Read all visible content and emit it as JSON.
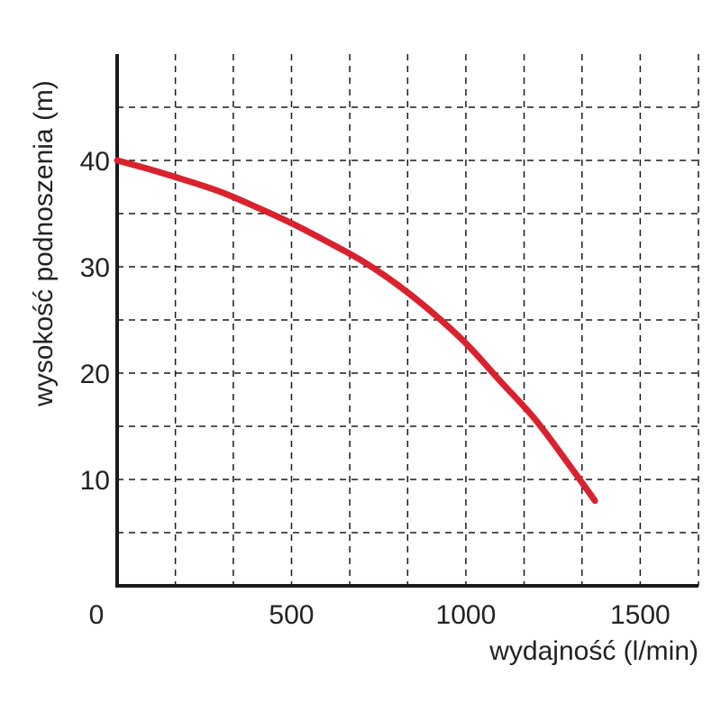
{
  "chart_data": {
    "type": "line",
    "title": "",
    "xlabel": "wydajność (l/min)",
    "ylabel": "wysokość podnoszenia (m)",
    "xlim": [
      0,
      1667
    ],
    "ylim": [
      0,
      50
    ],
    "x_ticks": [
      0,
      500,
      1000,
      1500
    ],
    "x_tick_labels": [
      "0",
      "500",
      "1000",
      "1500"
    ],
    "y_ticks": [
      10,
      20,
      30,
      40
    ],
    "y_tick_labels": [
      "10",
      "20",
      "30",
      "40"
    ],
    "x_grid": [
      167,
      333,
      500,
      667,
      833,
      1000,
      1167,
      1333,
      1500,
      1667
    ],
    "y_grid": [
      5,
      10,
      15,
      20,
      25,
      30,
      35,
      40,
      45
    ],
    "grid": true,
    "grid_style": "dashed",
    "legend": "none",
    "series": [
      {
        "color": "#d9222e",
        "x": [
          0,
          100,
          200,
          300,
          400,
          500,
          600,
          700,
          800,
          900,
          1000,
          1100,
          1200,
          1300,
          1370
        ],
        "y": [
          40,
          39.1,
          38.1,
          37.0,
          35.6,
          34.1,
          32.4,
          30.6,
          28.4,
          25.8,
          22.8,
          19.2,
          15.6,
          11.2,
          8
        ]
      }
    ]
  }
}
